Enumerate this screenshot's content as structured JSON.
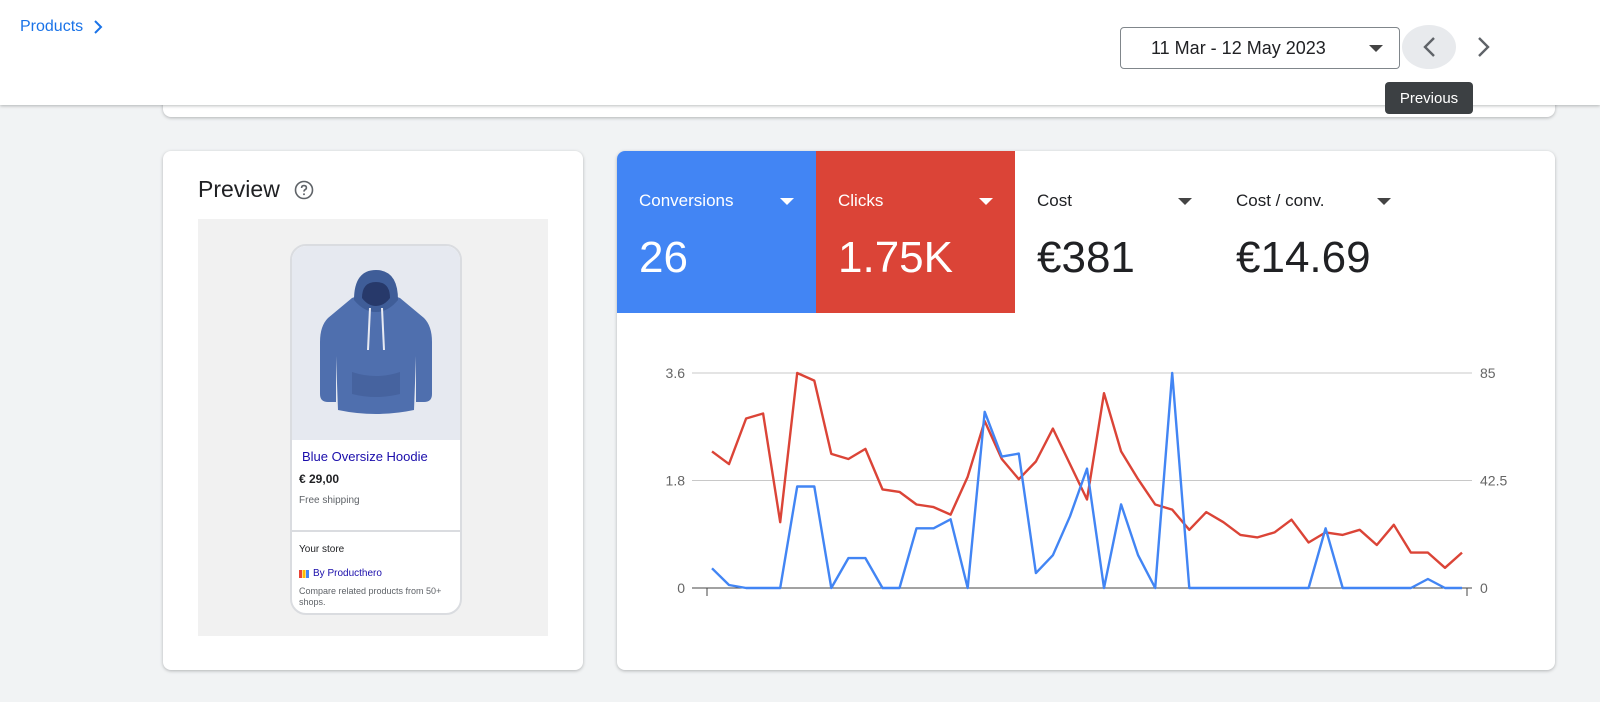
{
  "breadcrumb": {
    "label": "Products"
  },
  "date_range": {
    "value": "11 Mar - 12 May 2023"
  },
  "tooltip": {
    "text": "Previous"
  },
  "preview": {
    "title": "Preview",
    "product": {
      "name": "Blue Oversize Hoodie",
      "price": "€ 29,00",
      "shipping": "Free shipping"
    },
    "store": {
      "label": "Your store",
      "by": "By Producthero",
      "compare": "Compare related products from 50+ shops."
    }
  },
  "metrics": [
    {
      "label": "Conversions",
      "value": "26",
      "color": "#4285f4"
    },
    {
      "label": "Clicks",
      "value": "1.75K",
      "color": "#db4437"
    },
    {
      "label": "Cost",
      "value": "€381"
    },
    {
      "label": "Cost / conv.",
      "value": "€14.69"
    }
  ],
  "chart_data": {
    "type": "line",
    "left_axis": {
      "min": 0,
      "max": 3.6,
      "ticks": [
        "0",
        "1.8",
        "3.6"
      ]
    },
    "right_axis": {
      "min": 0,
      "max": 85,
      "ticks": [
        "0",
        "42.5",
        "85"
      ]
    },
    "grid": true,
    "series": [
      {
        "axis": "left",
        "color": "#4285f4",
        "values": [
          0.33,
          0.05,
          0,
          0,
          0,
          1.7,
          1.7,
          0,
          0.5,
          0.5,
          0,
          0,
          1.0,
          1.0,
          1.15,
          0,
          2.95,
          2.2,
          2.25,
          0.25,
          0.55,
          1.2,
          2.0,
          0,
          1.4,
          0.55,
          0,
          3.6,
          0,
          0,
          0,
          0,
          0,
          0,
          0,
          0,
          1.0,
          0,
          0,
          0,
          0,
          0,
          0.15,
          0,
          0
        ]
      },
      {
        "axis": "right",
        "color": "#db4437",
        "values": [
          54,
          49,
          67,
          69,
          26,
          85,
          82,
          53,
          51,
          55,
          39,
          38,
          33,
          32,
          29,
          44,
          66,
          51,
          43,
          50,
          63,
          49,
          35,
          77,
          54,
          43,
          33,
          31,
          23,
          30,
          26,
          21,
          20,
          22,
          27,
          18,
          22,
          21,
          23,
          17,
          25,
          14,
          14,
          8,
          14
        ]
      }
    ]
  }
}
